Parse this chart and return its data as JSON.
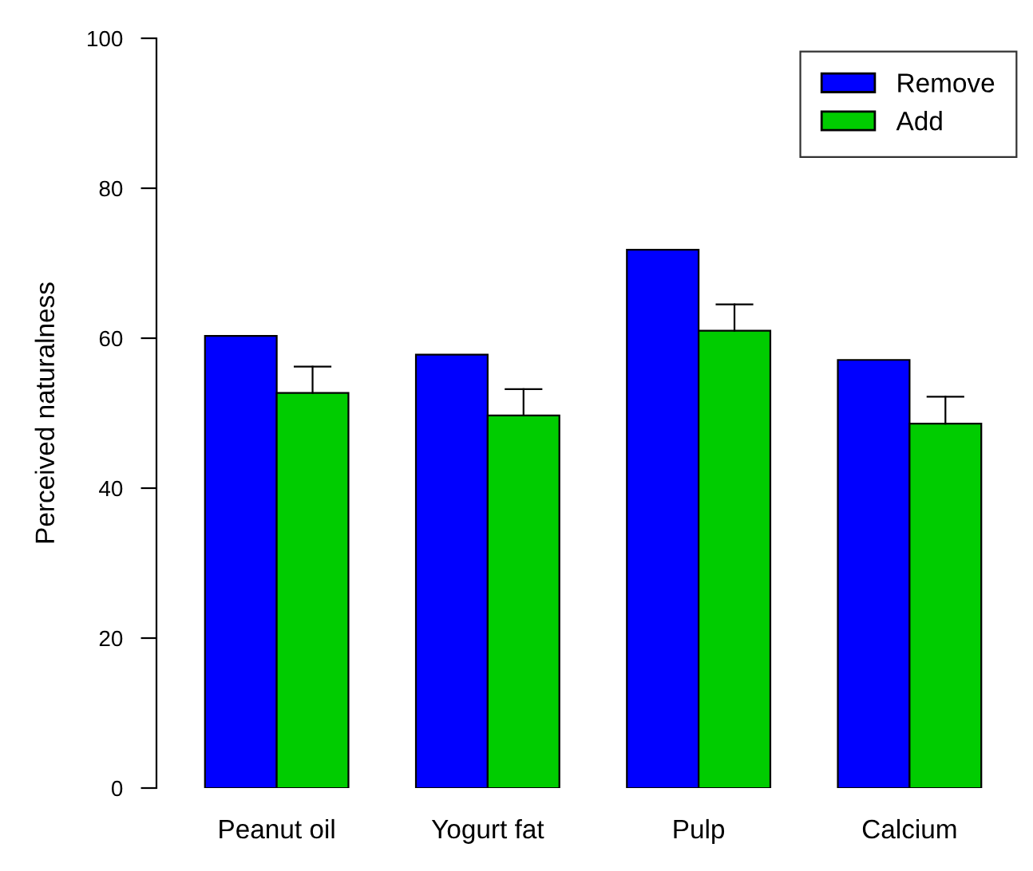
{
  "chart_data": {
    "type": "bar",
    "ylabel": "Perceived naturalness",
    "categories": [
      "Peanut oil",
      "Yogurt fat",
      "Pulp",
      "Calcium"
    ],
    "series": [
      {
        "name": "Remove",
        "color": "#0000ff",
        "values": [
          60.3,
          57.8,
          71.8,
          57.1
        ]
      },
      {
        "name": "Add",
        "color": "#00cc00",
        "values": [
          52.7,
          49.7,
          61.0,
          48.6
        ],
        "errors": [
          [
            52.7,
            56.2
          ],
          [
            49.7,
            53.2
          ],
          [
            61.0,
            64.5
          ],
          [
            48.6,
            52.2
          ]
        ]
      }
    ],
    "ylim": [
      0,
      100
    ],
    "yticks": [
      0,
      20,
      40,
      60,
      80,
      100
    ],
    "grid": false,
    "legend": "top right"
  }
}
